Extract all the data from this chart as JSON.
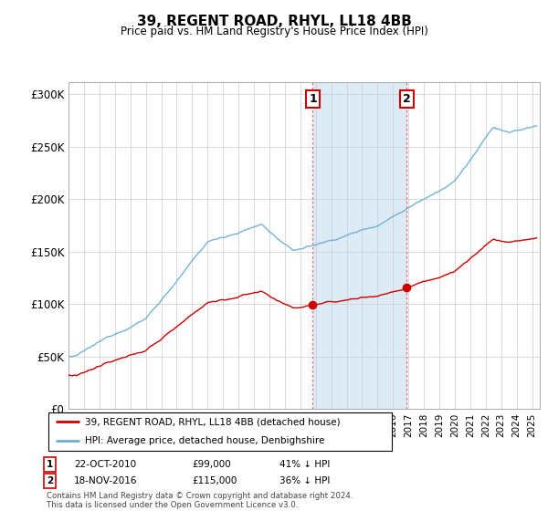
{
  "title": "39, REGENT ROAD, RHYL, LL18 4BB",
  "subtitle": "Price paid vs. HM Land Registry's House Price Index (HPI)",
  "ylabel_ticks": [
    "£0",
    "£50K",
    "£100K",
    "£150K",
    "£200K",
    "£250K",
    "£300K"
  ],
  "ytick_values": [
    0,
    50000,
    100000,
    150000,
    200000,
    250000,
    300000
  ],
  "ylim": [
    0,
    312000
  ],
  "xlim_start": 1995.0,
  "xlim_end": 2025.5,
  "hpi_color": "#6aaed6",
  "price_color": "#cc0000",
  "shade_color": "#d6e8f5",
  "transaction1_date": 2010.81,
  "transaction1_price": 99000,
  "transaction2_date": 2016.88,
  "transaction2_price": 115000,
  "legend_label1": "39, REGENT ROAD, RHYL, LL18 4BB (detached house)",
  "legend_label2": "HPI: Average price, detached house, Denbighshire",
  "annotation1_label": "1",
  "annotation1_date": "22-OCT-2010",
  "annotation1_price": "£99,000",
  "annotation1_hpi": "41% ↓ HPI",
  "annotation2_label": "2",
  "annotation2_date": "18-NOV-2016",
  "annotation2_price": "£115,000",
  "annotation2_hpi": "36% ↓ HPI",
  "footer": "Contains HM Land Registry data © Crown copyright and database right 2024.\nThis data is licensed under the Open Government Licence v3.0."
}
